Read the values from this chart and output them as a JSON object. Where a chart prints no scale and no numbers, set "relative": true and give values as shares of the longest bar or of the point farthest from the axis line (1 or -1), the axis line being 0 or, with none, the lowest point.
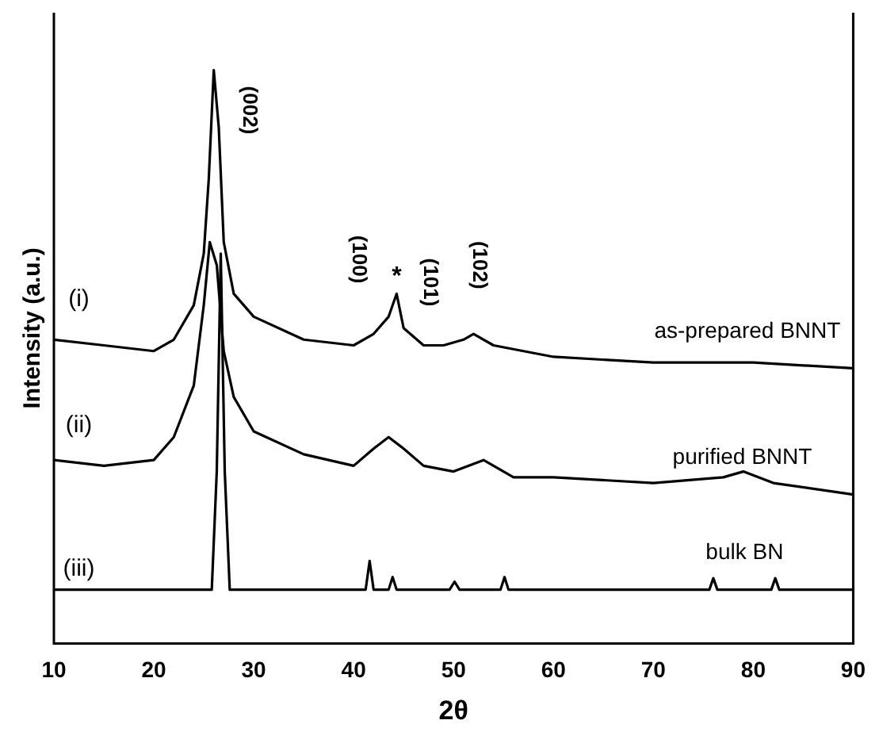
{
  "chart_data": {
    "type": "line",
    "xlabel": "2θ",
    "ylabel": "Intensity (a.u.)",
    "relative": true,
    "tick_labels": "x",
    "grid": false,
    "legend": false,
    "marker": "none",
    "line_style": "solid",
    "xlim": [
      10,
      90
    ],
    "xticks": [
      10,
      20,
      30,
      40,
      50,
      60,
      70,
      80,
      90
    ],
    "series": [
      {
        "name": "as-prepared BNNT",
        "color": "#000000",
        "x": [
          10,
          15,
          20,
          22,
          24,
          25,
          25.5,
          26,
          26.5,
          27,
          28,
          30,
          35,
          40,
          42,
          43.5,
          44.3,
          45,
          47,
          49,
          51,
          52,
          54,
          60,
          70,
          80,
          90
        ],
        "values": [
          0.53,
          0.52,
          0.51,
          0.53,
          0.59,
          0.68,
          0.81,
          1.0,
          0.9,
          0.7,
          0.61,
          0.57,
          0.53,
          0.52,
          0.54,
          0.57,
          0.61,
          0.55,
          0.52,
          0.52,
          0.53,
          0.54,
          0.52,
          0.5,
          0.49,
          0.49,
          0.48
        ]
      },
      {
        "name": "purified BNNT",
        "color": "#000000",
        "x": [
          10,
          15,
          20,
          22,
          24,
          25,
          25.6,
          26.3,
          27,
          28,
          30,
          35,
          40,
          42,
          43.5,
          45,
          47,
          50,
          53,
          56,
          60,
          70,
          77,
          79,
          82,
          90
        ],
        "values": [
          0.32,
          0.31,
          0.32,
          0.36,
          0.45,
          0.59,
          0.7,
          0.66,
          0.51,
          0.43,
          0.37,
          0.33,
          0.31,
          0.34,
          0.36,
          0.34,
          0.31,
          0.3,
          0.32,
          0.29,
          0.29,
          0.28,
          0.29,
          0.3,
          0.28,
          0.26
        ]
      },
      {
        "name": "bulk BN",
        "color": "#000000",
        "x": [
          10,
          25.8,
          26.3,
          26.7,
          27.1,
          27.6,
          41.2,
          41.6,
          42,
          43.5,
          43.9,
          44.3,
          49.6,
          50.1,
          50.6,
          54.7,
          55.1,
          55.5,
          75.6,
          76,
          76.4,
          81.8,
          82.2,
          82.6,
          90
        ],
        "values": [
          0.094,
          0.094,
          0.3,
          0.68,
          0.3,
          0.094,
          0.094,
          0.144,
          0.094,
          0.094,
          0.116,
          0.094,
          0.094,
          0.108,
          0.094,
          0.094,
          0.116,
          0.094,
          0.094,
          0.114,
          0.094,
          0.094,
          0.114,
          0.094,
          0.094
        ]
      }
    ],
    "annotations": [
      "(i)",
      "(ii)",
      "(iii)",
      "(002)",
      "(100)",
      "*",
      "(101)",
      "(102)"
    ]
  }
}
